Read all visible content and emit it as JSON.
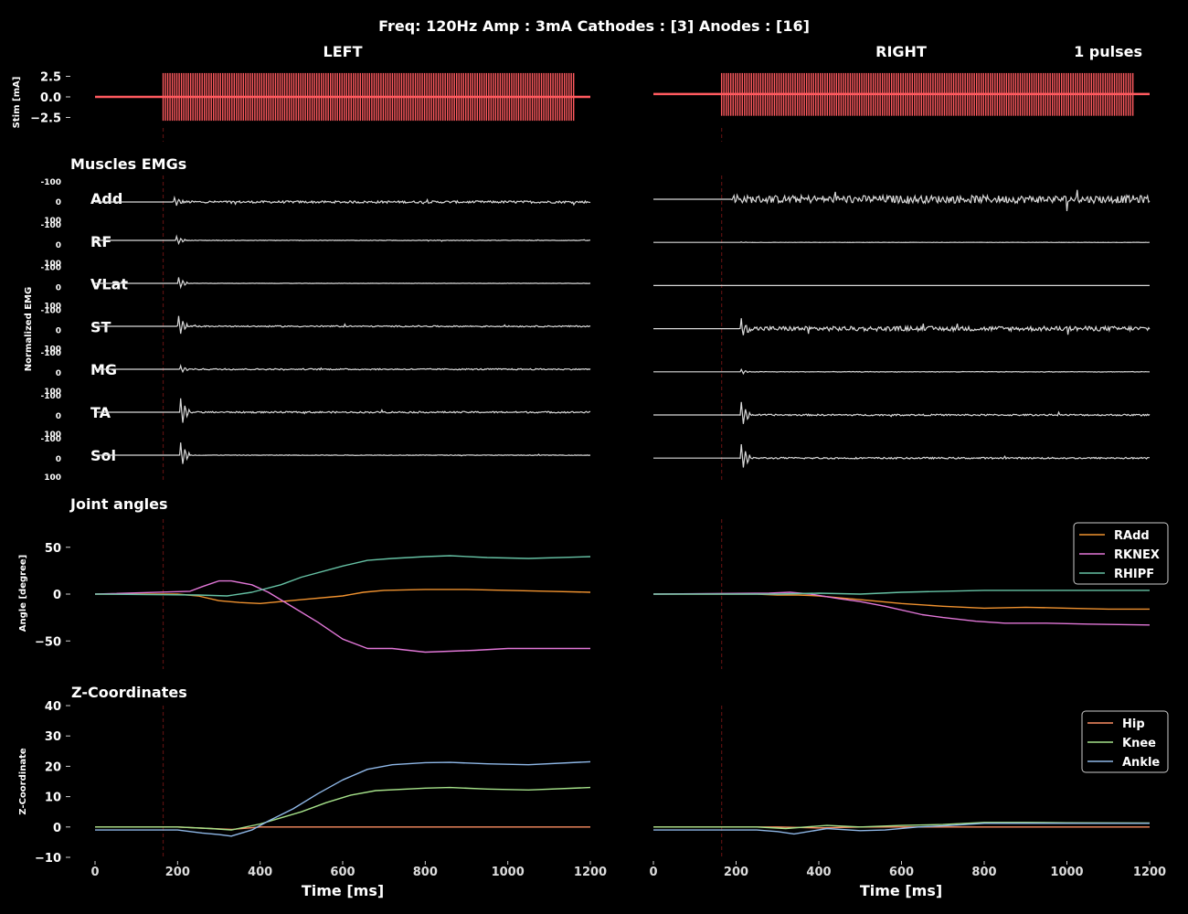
{
  "figure_title": "Freq: 120Hz  Amp : 3mA  Cathodes : [3]  Anodes : [16]",
  "colors": {
    "background": "#000000",
    "stim": "#ff5a5f",
    "emg": "#d9d9d9",
    "marker": "#5a1010",
    "RAdd": "#f0922f",
    "RKNEX": "#e277d8",
    "RHIPF": "#66c2a5",
    "Hip": "#fc8d62",
    "Knee": "#a6e28a",
    "Ankle": "#8fb8e8"
  },
  "labels": {
    "left_title": "LEFT",
    "right_title": "RIGHT",
    "pulses": "1 pulses",
    "emg_section": "Muscles EMGs",
    "joint_section": "Joint angles",
    "z_section": "Z-Coordinates",
    "stim_ylabel": "Stim [mA]",
    "emg_ylabel": "Normalized EMG",
    "angle_ylabel": "Angle [degree]",
    "z_ylabel": "Z-Coordinate",
    "xlabel": "Time [ms]"
  },
  "chart_data": [
    {
      "id": "stim",
      "type": "line",
      "ylabel": "Stim [mA]",
      "yticks": [
        2.5,
        0.0,
        -2.5
      ],
      "yticklabels": [
        "2.5",
        "0.0",
        "−2.5"
      ],
      "ylim": [
        -4,
        4
      ],
      "xlim": [
        0,
        1200
      ],
      "stim_onset_ms": 165,
      "stim_end_ms": 1165,
      "frequency_hz": 120,
      "left_amplitude": [
        -2.9,
        2.9
      ],
      "right_amplitude": [
        -2.3,
        2.9
      ],
      "left_baseline": 0.0,
      "right_baseline": 0.35
    },
    {
      "id": "emg",
      "type": "line",
      "ylabel": "Normalized EMG",
      "tick_labels": [
        "-100",
        "0",
        "100"
      ],
      "muscles": [
        "Add",
        "RF",
        "VLat",
        "ST",
        "MG",
        "TA",
        "Sol"
      ],
      "left_response": {
        "Add": {
          "onset_ms": 190,
          "burst": 0.25,
          "tail": 0.09
        },
        "RF": {
          "onset_ms": 195,
          "burst": 0.25,
          "tail": 0.02
        },
        "VLat": {
          "onset_ms": 200,
          "burst": 0.35,
          "tail": 0.01
        },
        "ST": {
          "onset_ms": 200,
          "burst": 0.65,
          "tail": 0.05
        },
        "MG": {
          "onset_ms": 205,
          "burst": 0.2,
          "tail": 0.05
        },
        "TA": {
          "onset_ms": 205,
          "burst": 0.85,
          "tail": 0.06
        },
        "Sol": {
          "onset_ms": 205,
          "burst": 0.75,
          "tail": 0.02
        }
      },
      "right_response": {
        "Add": {
          "onset_ms": 190,
          "burst": 0.3,
          "tail": 0.3
        },
        "RF": {
          "onset_ms": 210,
          "burst": 0.02,
          "tail": 0.01
        },
        "VLat": {
          "onset_ms": 210,
          "burst": 0.0,
          "tail": 0.0
        },
        "ST": {
          "onset_ms": 210,
          "burst": 0.5,
          "tail": 0.18
        },
        "MG": {
          "onset_ms": 210,
          "burst": 0.15,
          "tail": 0.02
        },
        "TA": {
          "onset_ms": 210,
          "burst": 0.8,
          "tail": 0.06
        },
        "Sol": {
          "onset_ms": 210,
          "burst": 0.85,
          "tail": 0.06
        }
      }
    },
    {
      "id": "angles",
      "type": "line",
      "ylabel": "Angle [degree]",
      "yticks": [
        50,
        0,
        -50
      ],
      "yticklabels": [
        "50",
        "0",
        "−50"
      ],
      "ylim": [
        -80,
        80
      ],
      "xlim": [
        0,
        1200
      ],
      "legend_position": "top-right",
      "left_series": [
        {
          "key": "RAdd",
          "points": [
            [
              0,
              0
            ],
            [
              200,
              0
            ],
            [
              250,
              -2
            ],
            [
              300,
              -7
            ],
            [
              350,
              -9
            ],
            [
              400,
              -10
            ],
            [
              450,
              -8
            ],
            [
              500,
              -6
            ],
            [
              600,
              -2
            ],
            [
              650,
              2
            ],
            [
              700,
              4
            ],
            [
              800,
              5
            ],
            [
              900,
              5
            ],
            [
              1000,
              4
            ],
            [
              1100,
              3
            ],
            [
              1200,
              2
            ]
          ]
        },
        {
          "key": "RKNEX",
          "points": [
            [
              0,
              0
            ],
            [
              230,
              3
            ],
            [
              260,
              8
            ],
            [
              300,
              14
            ],
            [
              330,
              14
            ],
            [
              380,
              10
            ],
            [
              420,
              2
            ],
            [
              480,
              -14
            ],
            [
              540,
              -30
            ],
            [
              600,
              -48
            ],
            [
              660,
              -58
            ],
            [
              720,
              -58
            ],
            [
              800,
              -62
            ],
            [
              860,
              -61
            ],
            [
              920,
              -60
            ],
            [
              1000,
              -58
            ],
            [
              1200,
              -58
            ]
          ]
        },
        {
          "key": "RHIPF",
          "points": [
            [
              0,
              0
            ],
            [
              250,
              -1
            ],
            [
              320,
              -2
            ],
            [
              380,
              2
            ],
            [
              450,
              10
            ],
            [
              500,
              18
            ],
            [
              600,
              30
            ],
            [
              660,
              36
            ],
            [
              720,
              38
            ],
            [
              800,
              40
            ],
            [
              860,
              41
            ],
            [
              950,
              39
            ],
            [
              1050,
              38
            ],
            [
              1200,
              40
            ]
          ]
        }
      ],
      "right_series": [
        {
          "key": "RAdd",
          "points": [
            [
              0,
              0
            ],
            [
              250,
              0
            ],
            [
              300,
              -1
            ],
            [
              350,
              -1
            ],
            [
              400,
              -2
            ],
            [
              450,
              -4
            ],
            [
              500,
              -6
            ],
            [
              600,
              -10
            ],
            [
              700,
              -13
            ],
            [
              800,
              -15
            ],
            [
              900,
              -14
            ],
            [
              1000,
              -15
            ],
            [
              1100,
              -16
            ],
            [
              1200,
              -16
            ]
          ]
        },
        {
          "key": "RKNEX",
          "points": [
            [
              0,
              0
            ],
            [
              280,
              1
            ],
            [
              330,
              2
            ],
            [
              380,
              0
            ],
            [
              450,
              -5
            ],
            [
              500,
              -8
            ],
            [
              560,
              -13
            ],
            [
              650,
              -22
            ],
            [
              700,
              -25
            ],
            [
              780,
              -29
            ],
            [
              850,
              -31
            ],
            [
              950,
              -31
            ],
            [
              1050,
              -32
            ],
            [
              1200,
              -33
            ]
          ]
        },
        {
          "key": "RHIPF",
          "points": [
            [
              0,
              0
            ],
            [
              300,
              0
            ],
            [
              400,
              1
            ],
            [
              500,
              0
            ],
            [
              600,
              2
            ],
            [
              700,
              3
            ],
            [
              800,
              4
            ],
            [
              900,
              4
            ],
            [
              1000,
              4
            ],
            [
              1200,
              4
            ]
          ]
        }
      ],
      "legend": [
        "RAdd",
        "RKNEX",
        "RHIPF"
      ]
    },
    {
      "id": "z",
      "type": "line",
      "ylabel": "Z-Coordinate",
      "yticks": [
        40,
        30,
        20,
        10,
        0,
        -10
      ],
      "yticklabels": [
        "40",
        "30",
        "20",
        "10",
        "0",
        "−10"
      ],
      "ylim": [
        -10,
        40
      ],
      "xlim": [
        0,
        1200
      ],
      "xticks": [
        0,
        200,
        400,
        600,
        800,
        1000,
        1200
      ],
      "legend_position": "top-right",
      "left_series": [
        {
          "key": "Hip",
          "points": [
            [
              0,
              0
            ],
            [
              200,
              0
            ],
            [
              280,
              -0.5
            ],
            [
              330,
              -0.8
            ],
            [
              400,
              0
            ],
            [
              1200,
              0
            ]
          ]
        },
        {
          "key": "Knee",
          "points": [
            [
              0,
              0
            ],
            [
              200,
              0
            ],
            [
              280,
              -0.5
            ],
            [
              330,
              -1
            ],
            [
              400,
              1
            ],
            [
              450,
              3
            ],
            [
              500,
              5
            ],
            [
              560,
              8
            ],
            [
              620,
              10.5
            ],
            [
              680,
              12
            ],
            [
              800,
              12.8
            ],
            [
              860,
              13
            ],
            [
              950,
              12.5
            ],
            [
              1050,
              12.2
            ],
            [
              1200,
              13
            ]
          ]
        },
        {
          "key": "Ankle",
          "points": [
            [
              0,
              -1
            ],
            [
              200,
              -1
            ],
            [
              260,
              -2
            ],
            [
              300,
              -2.5
            ],
            [
              330,
              -3
            ],
            [
              380,
              -1
            ],
            [
              420,
              2
            ],
            [
              480,
              6
            ],
            [
              540,
              11
            ],
            [
              600,
              15.5
            ],
            [
              660,
              19
            ],
            [
              720,
              20.5
            ],
            [
              800,
              21.2
            ],
            [
              860,
              21.3
            ],
            [
              950,
              20.8
            ],
            [
              1050,
              20.5
            ],
            [
              1200,
              21.5
            ]
          ]
        }
      ],
      "right_series": [
        {
          "key": "Hip",
          "points": [
            [
              0,
              0
            ],
            [
              300,
              0
            ],
            [
              400,
              -0.3
            ],
            [
              500,
              0
            ],
            [
              1200,
              0
            ]
          ]
        },
        {
          "key": "Knee",
          "points": [
            [
              0,
              0
            ],
            [
              250,
              0
            ],
            [
              320,
              -0.5
            ],
            [
              420,
              0.5
            ],
            [
              500,
              0
            ],
            [
              600,
              0.5
            ],
            [
              700,
              0.8
            ],
            [
              800,
              1.5
            ],
            [
              900,
              1.5
            ],
            [
              1000,
              1.4
            ],
            [
              1200,
              1.3
            ]
          ]
        },
        {
          "key": "Ankle",
          "points": [
            [
              0,
              -1
            ],
            [
              250,
              -1
            ],
            [
              300,
              -1.5
            ],
            [
              340,
              -2.3
            ],
            [
              420,
              -0.5
            ],
            [
              500,
              -1.2
            ],
            [
              560,
              -1
            ],
            [
              640,
              0
            ],
            [
              720,
              0.5
            ],
            [
              800,
              1.2
            ],
            [
              900,
              1.2
            ],
            [
              1000,
              1.2
            ],
            [
              1200,
              1.2
            ]
          ]
        }
      ],
      "legend": [
        "Hip",
        "Knee",
        "Ankle"
      ]
    }
  ]
}
